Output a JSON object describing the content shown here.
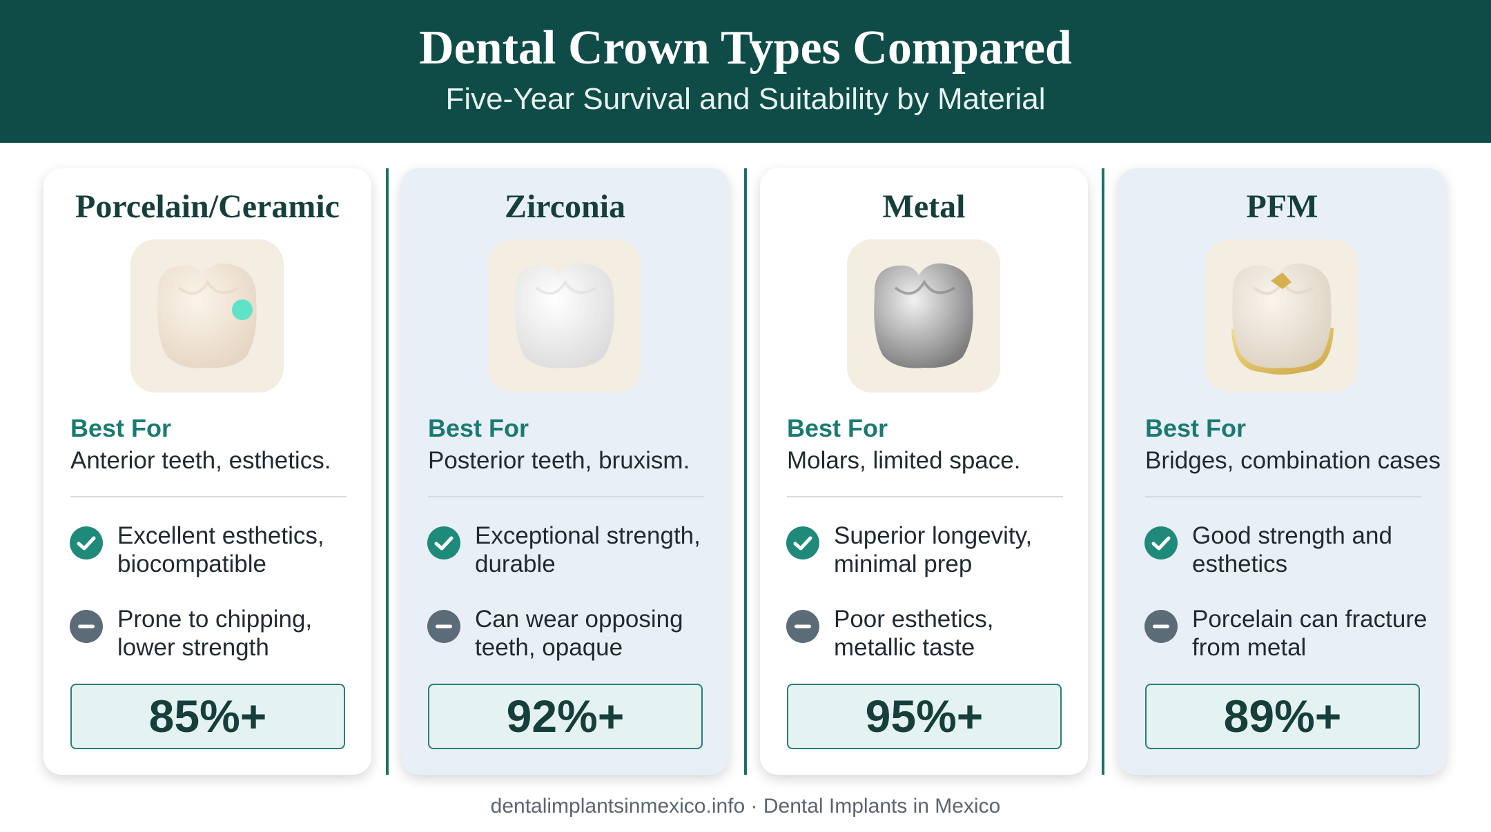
{
  "header": {
    "title": "Dental Crown Types Compared",
    "subtitle": "Five-Year Survival and Suitability by Material"
  },
  "cards": [
    {
      "name": "Porcelain/Ceramic",
      "best_for_label": "Best For",
      "best_for": "Anterior teeth, esthetics.",
      "pro": [
        "Excellent esthetics,",
        "biocompatible"
      ],
      "con": [
        "Prone to chipping,",
        "lower strength"
      ],
      "survival": "85%+"
    },
    {
      "name": "Zirconia",
      "best_for_label": "Best For",
      "best_for": "Posterior teeth, bruxism.",
      "pro": [
        "Exceptional strength,",
        "durable"
      ],
      "con": [
        "Can wear opposing",
        "teeth, opaque"
      ],
      "survival": "92%+"
    },
    {
      "name": "Metal",
      "best_for_label": "Best For",
      "best_for": "Molars, limited space.",
      "pro": [
        "Superior longevity,",
        "minimal prep"
      ],
      "con": [
        "Poor esthetics,",
        "metallic taste"
      ],
      "survival": "95%+"
    },
    {
      "name": "PFM",
      "best_for_label": "Best For",
      "best_for": "Bridges, combination cases",
      "pro": [
        "Good strength and",
        "esthetics"
      ],
      "con": [
        "Porcelain can fracture",
        "from metal"
      ],
      "survival": "89%+"
    }
  ],
  "footer": "dentalimplantsinmexico.info · Dental Implants in Mexico"
}
